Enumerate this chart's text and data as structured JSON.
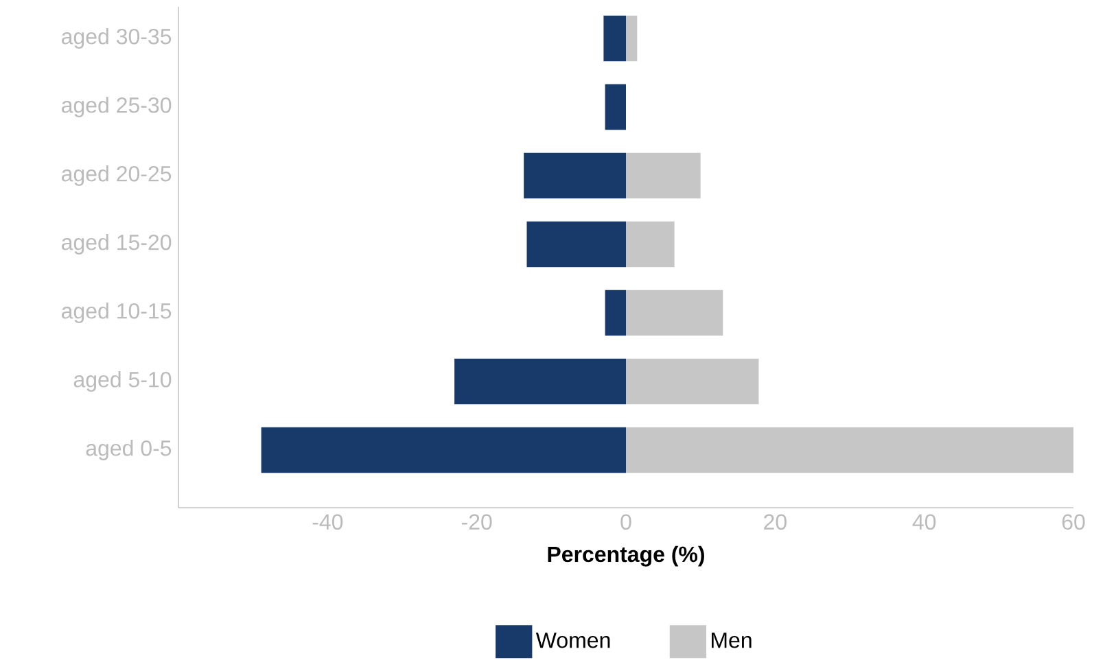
{
  "chart_data": {
    "type": "bar",
    "orientation": "horizontal",
    "xlabel": "Percentage (%)",
    "categories": [
      "aged 30-35",
      "aged 25-30",
      "aged 20-25",
      "aged 15-20",
      "aged 10-15",
      "aged 5-10",
      "aged 0-5"
    ],
    "series": [
      {
        "name": "Women",
        "color": "#173a6b",
        "values": [
          -3,
          -2.8,
          -13.7,
          -13.3,
          -2.8,
          -23,
          -48.9
        ]
      },
      {
        "name": "Men",
        "color": "#c6c6c6",
        "values": [
          1.5,
          0,
          10,
          6.5,
          13,
          17.8,
          60
        ]
      }
    ],
    "xlim": [
      -60,
      60
    ],
    "xticks": [
      -40,
      -20,
      0,
      20,
      40,
      60
    ],
    "legend": "bottom",
    "stacked": true
  }
}
